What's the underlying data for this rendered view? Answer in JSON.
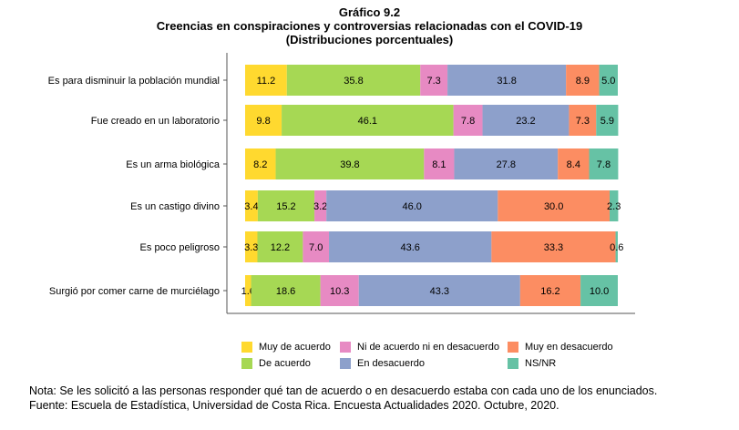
{
  "title": "Gráfico 9.2",
  "subtitle": "Creencias en conspiraciones y controversias relacionadas con el COVID-19",
  "subtitle2": "(Distribuciones porcentuales)",
  "note": "Nota: Se les solicitó a las personas responder qué tan de acuerdo o en desacuerdo estaba con cada uno de los enunciados.",
  "source": "Fuente: Escuela de Estadística, Universidad de Costa Rica. Encuesta Actualidades 2020. Octubre, 2020.",
  "chart_data": {
    "type": "bar",
    "orientation": "horizontal",
    "stacked": true,
    "xlim": [
      0,
      100
    ],
    "grid": false,
    "legend_position": "bottom",
    "categories": [
      "Es para disminuir la población mundial",
      "Fue creado en un laboratorio",
      "Es un arma biológica",
      "Es un castigo divino",
      "Es poco peligroso",
      "Surgió por comer carne de murciélago"
    ],
    "series": [
      {
        "name": "Muy de acuerdo",
        "color": "#ffd92f",
        "values": [
          11.2,
          9.8,
          8.2,
          3.4,
          3.3,
          1.6
        ]
      },
      {
        "name": "De acuerdo",
        "color": "#a6d854",
        "values": [
          35.8,
          46.1,
          39.8,
          15.2,
          12.2,
          18.6
        ]
      },
      {
        "name": "Ni de acuerdo ni en desacuerdo",
        "color": "#e78ac3",
        "values": [
          7.3,
          7.8,
          8.1,
          3.2,
          7.0,
          10.3
        ]
      },
      {
        "name": "En desacuerdo",
        "color": "#8da0cb",
        "values": [
          31.8,
          23.2,
          27.8,
          46.0,
          43.6,
          43.3
        ]
      },
      {
        "name": "Muy en desacuerdo",
        "color": "#fc8d62",
        "values": [
          8.9,
          7.3,
          8.4,
          30.0,
          33.3,
          16.2
        ]
      },
      {
        "name": "NS/NR",
        "color": "#66c2a5",
        "values": [
          5.0,
          5.9,
          7.8,
          2.3,
          0.6,
          10.0
        ]
      }
    ]
  }
}
